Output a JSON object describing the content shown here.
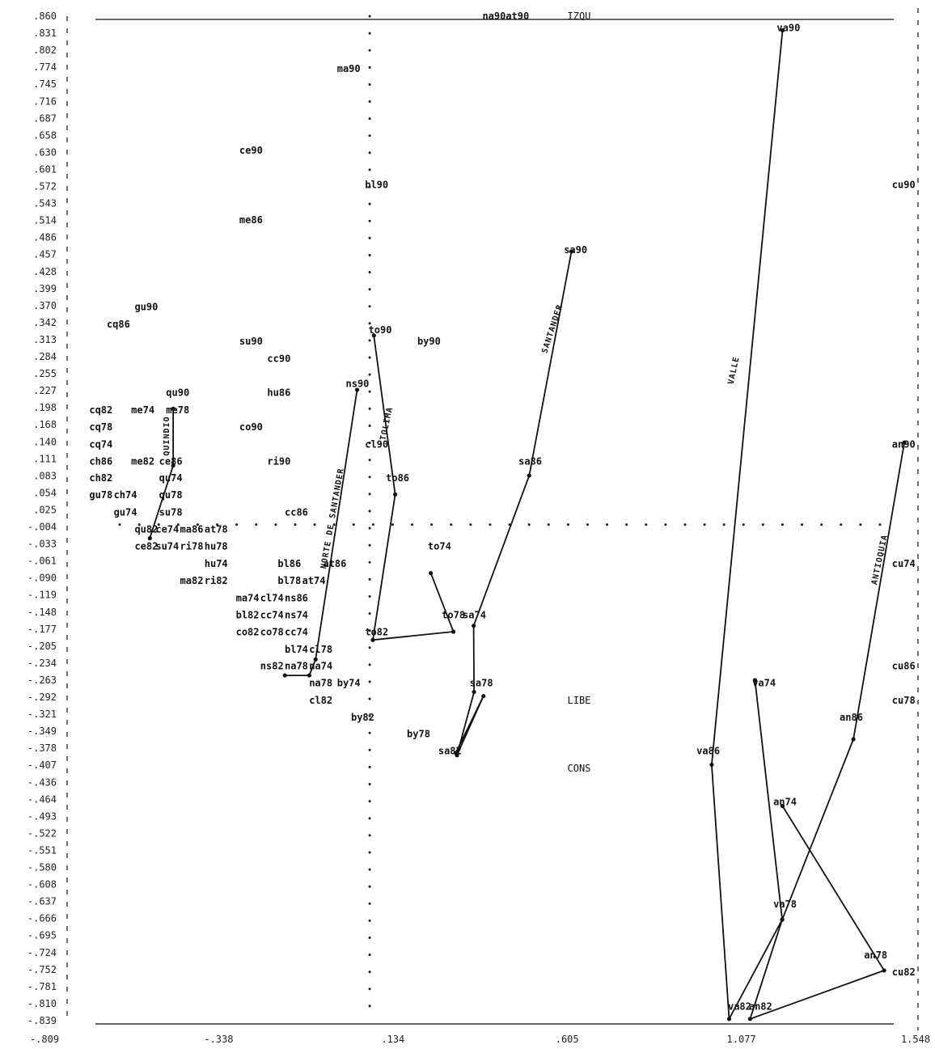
{
  "chart_data": {
    "type": "scatter",
    "title": "",
    "xlabel": "",
    "ylabel": "",
    "xlim": [
      -0.809,
      1.548
    ],
    "ylim": [
      -0.839,
      0.86
    ],
    "x_ticks": [
      "-.809",
      "-.338",
      ".134",
      ".605",
      "1.077",
      "1.548"
    ],
    "y_ticks": [
      ".860",
      ".831",
      ".802",
      ".774",
      ".745",
      ".716",
      ".687",
      ".658",
      ".630",
      ".601",
      ".572",
      ".543",
      ".514",
      ".486",
      ".457",
      ".428",
      ".399",
      ".370",
      ".342",
      ".313",
      ".284",
      ".255",
      ".227",
      ".198",
      ".168",
      ".140",
      ".111",
      ".083",
      ".054",
      ".025",
      "-.004",
      "-.033",
      "-.061",
      "-.090",
      "-.119",
      "-.148",
      "-.177",
      "-.205",
      "-.234",
      "-.263",
      "-.292",
      "-.321",
      "-.349",
      "-.378",
      "-.407",
      "-.436",
      "-.464",
      "-.493",
      "-.522",
      "-.551",
      "-.580",
      "-.608",
      "-.637",
      "-.666",
      "-.695",
      "-.724",
      "-.752",
      "-.781",
      "-.810",
      "-.839"
    ],
    "points": [
      {
        "label": "na90at90",
        "x": 0.39,
        "y": 0.86
      },
      {
        "label": "IZQU",
        "x": 0.6,
        "y": 0.86
      },
      {
        "label": "va90",
        "x": 1.2,
        "y": 0.84
      },
      {
        "label": "ma90",
        "x": -0.06,
        "y": 0.771
      },
      {
        "label": "ce90",
        "x": -0.34,
        "y": 0.633
      },
      {
        "label": "bl90",
        "x": 0.02,
        "y": 0.575
      },
      {
        "label": "cu90",
        "x": 1.53,
        "y": 0.575
      },
      {
        "label": "me86",
        "x": -0.34,
        "y": 0.515
      },
      {
        "label": "sa90",
        "x": 0.59,
        "y": 0.465
      },
      {
        "label": "gu90",
        "x": -0.64,
        "y": 0.368
      },
      {
        "label": "cq86",
        "x": -0.72,
        "y": 0.339
      },
      {
        "label": "to90",
        "x": 0.03,
        "y": 0.329
      },
      {
        "label": "su90",
        "x": -0.34,
        "y": 0.31
      },
      {
        "label": "by90",
        "x": 0.17,
        "y": 0.31
      },
      {
        "label": "cc90",
        "x": -0.26,
        "y": 0.281
      },
      {
        "label": "ns90",
        "x": -0.035,
        "y": 0.238
      },
      {
        "label": "hu86",
        "x": -0.26,
        "y": 0.223
      },
      {
        "label": "qu90",
        "x": -0.55,
        "y": 0.223
      },
      {
        "label": "cq82",
        "x": -0.77,
        "y": 0.194
      },
      {
        "label": "me74",
        "x": -0.65,
        "y": 0.194
      },
      {
        "label": "me78",
        "x": -0.55,
        "y": 0.194
      },
      {
        "label": "cq78",
        "x": -0.77,
        "y": 0.165
      },
      {
        "label": "co90",
        "x": -0.34,
        "y": 0.165
      },
      {
        "label": "cq74",
        "x": -0.77,
        "y": 0.136
      },
      {
        "label": "cl90",
        "x": 0.02,
        "y": 0.136
      },
      {
        "label": "an90",
        "x": 1.53,
        "y": 0.136
      },
      {
        "label": "ch86",
        "x": -0.77,
        "y": 0.107
      },
      {
        "label": "me82",
        "x": -0.65,
        "y": 0.107
      },
      {
        "label": "ce86",
        "x": -0.57,
        "y": 0.107
      },
      {
        "label": "ri90",
        "x": -0.26,
        "y": 0.107
      },
      {
        "label": "sa86",
        "x": 0.46,
        "y": 0.107
      },
      {
        "label": "ch82",
        "x": -0.77,
        "y": 0.079
      },
      {
        "label": "qu74",
        "x": -0.57,
        "y": 0.079
      },
      {
        "label": "to86",
        "x": 0.08,
        "y": 0.079
      },
      {
        "label": "gu78",
        "x": -0.77,
        "y": 0.05
      },
      {
        "label": "ch74",
        "x": -0.7,
        "y": 0.05
      },
      {
        "label": "qu78",
        "x": -0.57,
        "y": 0.05
      },
      {
        "label": "gu74",
        "x": -0.7,
        "y": 0.021
      },
      {
        "label": "su78",
        "x": -0.57,
        "y": 0.021
      },
      {
        "label": "cc86",
        "x": -0.21,
        "y": 0.021
      },
      {
        "label": "qu82",
        "x": -0.64,
        "y": -0.008
      },
      {
        "label": "ce74",
        "x": -0.58,
        "y": -0.008
      },
      {
        "label": "ma86",
        "x": -0.51,
        "y": -0.008
      },
      {
        "label": "at78",
        "x": -0.44,
        "y": -0.008
      },
      {
        "label": "ce82",
        "x": -0.64,
        "y": -0.037
      },
      {
        "label": "su74",
        "x": -0.58,
        "y": -0.037
      },
      {
        "label": "ri78",
        "x": -0.51,
        "y": -0.037
      },
      {
        "label": "hu78",
        "x": -0.44,
        "y": -0.037
      },
      {
        "label": "to74",
        "x": 0.2,
        "y": -0.037
      },
      {
        "label": "cu74",
        "x": 1.53,
        "y": -0.066
      },
      {
        "label": "hu74",
        "x": -0.44,
        "y": -0.066
      },
      {
        "label": "bl86",
        "x": -0.23,
        "y": -0.066
      },
      {
        "label": "at86",
        "x": -0.1,
        "y": -0.066
      },
      {
        "label": "ma82",
        "x": -0.51,
        "y": -0.095
      },
      {
        "label": "ri82",
        "x": -0.44,
        "y": -0.095
      },
      {
        "label": "bl78",
        "x": -0.23,
        "y": -0.095
      },
      {
        "label": "at74",
        "x": -0.16,
        "y": -0.095
      },
      {
        "label": "ma74",
        "x": -0.35,
        "y": -0.124
      },
      {
        "label": "cl74",
        "x": -0.28,
        "y": -0.124
      },
      {
        "label": "ns86",
        "x": -0.21,
        "y": -0.124
      },
      {
        "label": "bl82",
        "x": -0.35,
        "y": -0.153
      },
      {
        "label": "cc74",
        "x": -0.28,
        "y": -0.153
      },
      {
        "label": "ns74",
        "x": -0.21,
        "y": -0.153
      },
      {
        "label": "to78",
        "x": 0.24,
        "y": -0.153
      },
      {
        "label": "sa74",
        "x": 0.3,
        "y": -0.153
      },
      {
        "label": "co82",
        "x": -0.35,
        "y": -0.182
      },
      {
        "label": "co78",
        "x": -0.28,
        "y": -0.182
      },
      {
        "label": "cc74",
        "x": -0.21,
        "y": -0.182
      },
      {
        "label": "to82",
        "x": 0.02,
        "y": -0.182
      },
      {
        "label": "bl74",
        "x": -0.21,
        "y": -0.211
      },
      {
        "label": "cl78",
        "x": -0.14,
        "y": -0.211
      },
      {
        "label": "cu86",
        "x": 1.53,
        "y": -0.239
      },
      {
        "label": "ns82",
        "x": -0.28,
        "y": -0.239
      },
      {
        "label": "na78",
        "x": -0.21,
        "y": -0.239
      },
      {
        "label": "na74",
        "x": -0.14,
        "y": -0.239
      },
      {
        "label": "na78",
        "x": -0.14,
        "y": -0.268
      },
      {
        "label": "by74",
        "x": -0.06,
        "y": -0.268
      },
      {
        "label": "sa78",
        "x": 0.32,
        "y": -0.268
      },
      {
        "label": "va74",
        "x": 1.13,
        "y": -0.268
      },
      {
        "label": "cl82",
        "x": -0.14,
        "y": -0.297
      },
      {
        "label": "LIBE",
        "x": 0.6,
        "y": -0.297
      },
      {
        "label": "cu78",
        "x": 1.53,
        "y": -0.297
      },
      {
        "label": "by82",
        "x": -0.02,
        "y": -0.326
      },
      {
        "label": "an86",
        "x": 1.38,
        "y": -0.326
      },
      {
        "label": "by78",
        "x": 0.14,
        "y": -0.354
      },
      {
        "label": "sa82",
        "x": 0.23,
        "y": -0.383
      },
      {
        "label": "va86",
        "x": 0.97,
        "y": -0.383
      },
      {
        "label": "CONS",
        "x": 0.6,
        "y": -0.412
      },
      {
        "label": "an74",
        "x": 1.19,
        "y": -0.469
      },
      {
        "label": "va78",
        "x": 1.19,
        "y": -0.642
      },
      {
        "label": "an78",
        "x": 1.45,
        "y": -0.728
      },
      {
        "label": "cu82",
        "x": 1.53,
        "y": -0.757
      },
      {
        "label": "va82",
        "x": 1.06,
        "y": -0.815
      },
      {
        "label": "an82",
        "x": 1.12,
        "y": -0.815
      }
    ],
    "trajectories": [
      {
        "name": "VALLE",
        "path": [
          [
            1.183,
            0.836
          ],
          [
            0.98,
            -0.406
          ],
          [
            1.03,
            -0.836
          ],
          [
            1.182,
            -0.668
          ],
          [
            1.104,
            -0.263
          ]
        ]
      },
      {
        "name": "ANTIOQUIA",
        "path": [
          [
            1.532,
            0.139
          ],
          [
            1.386,
            -0.363
          ],
          [
            1.182,
            -0.668
          ],
          [
            1.09,
            -0.836
          ],
          [
            1.474,
            -0.754
          ],
          [
            1.183,
            -0.476
          ]
        ]
      },
      {
        "name": "SANTANDER",
        "path": [
          [
            0.578,
            0.462
          ],
          [
            0.457,
            0.083
          ],
          [
            0.298,
            -0.171
          ],
          [
            0.299,
            -0.283
          ],
          [
            0.25,
            -0.39
          ],
          [
            0.326,
            -0.29
          ],
          [
            0.247,
            -0.386
          ]
        ]
      },
      {
        "name": "TOLIMA",
        "path": [
          [
            0.012,
            0.32
          ],
          [
            0.073,
            0.051
          ],
          [
            0.009,
            -0.195
          ],
          [
            0.24,
            -0.181
          ],
          [
            0.175,
            -0.082
          ]
        ]
      },
      {
        "name": "NORTE DE SANTANDER",
        "path": [
          [
            -0.036,
            0.228
          ],
          [
            -0.155,
            -0.228
          ],
          [
            -0.173,
            -0.255
          ],
          [
            -0.243,
            -0.255
          ]
        ]
      },
      {
        "name": "QUINDIO",
        "path": [
          [
            -0.563,
            0.196
          ],
          [
            -0.563,
            0.1
          ],
          [
            -0.63,
            -0.023
          ]
        ]
      }
    ]
  }
}
